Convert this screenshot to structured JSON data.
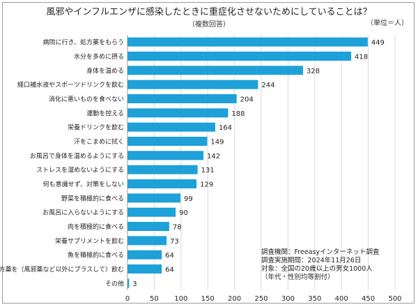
{
  "title": "風邪やインフルエンザに感染したときに重症化させないためにしていることは？",
  "subtitle": "（複数回答）",
  "unit": "（単位＝人）",
  "source_lines": [
    "調査機関：Freeasyインターネット調査",
    "調査実施期間：2024年11月26日",
    "対象：全国の20歳以上の男女1000人",
    "（年代・性別均等割付）"
  ],
  "colors": {
    "bar": "#1ea0d8",
    "grid": "#d9d9d9"
  },
  "chart_data": {
    "type": "bar",
    "orientation": "horizontal",
    "categories": [
      "病院に行き、処方薬をもらう",
      "水分を多めに摂る",
      "身体を温める",
      "経口補水液やスポーツドリンクを飲む",
      "消化に悪いものを食べない",
      "運動を控える",
      "栄養ドリンクを飲む",
      "汗をこまめに拭く",
      "お風呂で身体を温めるようにする",
      "ストレスを溜めないようにする",
      "何も意識せず、対策をしない",
      "野菜を積極的に食べる",
      "お風呂に入らないようにする",
      "肉を積極的に食べる",
      "栄養サプリメントを飲む",
      "魚を積極的に食べる",
      "漢方薬を（風邪薬など以外にプラスして）飲む",
      "その他"
    ],
    "values": [
      449,
      418,
      328,
      244,
      204,
      188,
      164,
      149,
      142,
      131,
      129,
      99,
      90,
      78,
      73,
      64,
      64,
      3
    ],
    "xlim": [
      0,
      500
    ],
    "xticks": [
      0,
      50,
      100,
      150,
      200,
      250,
      300,
      350,
      400,
      450,
      500
    ],
    "grid": true,
    "legend": "none"
  }
}
